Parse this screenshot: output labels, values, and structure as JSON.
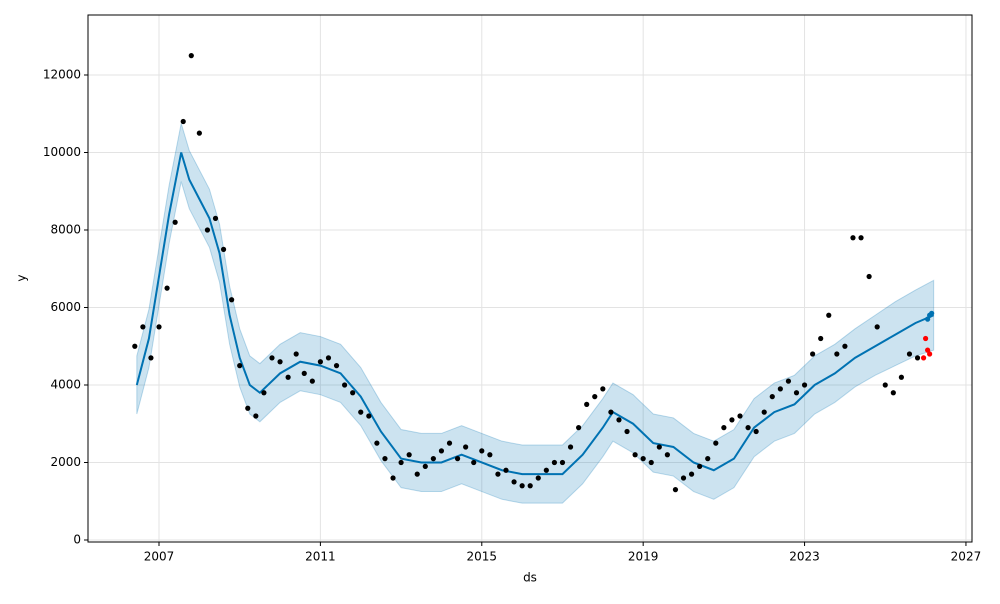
{
  "chart_data": {
    "type": "forecast",
    "x_label": "ds",
    "y_label": "y",
    "xlim": [
      2005.24,
      2027.15
    ],
    "ylim": [
      -52,
      13548
    ],
    "xticks": [
      2007,
      2011,
      2015,
      2019,
      2023,
      2027
    ],
    "yticks": [
      0,
      2000,
      4000,
      6000,
      8000,
      10000,
      12000
    ],
    "grid": true,
    "series": [
      {
        "kind": "band",
        "color": "#0072B2",
        "x": [
          2006.45,
          2006.75,
          2007.0,
          2007.25,
          2007.55,
          2007.75,
          2008.0,
          2008.25,
          2008.5,
          2008.75,
          2009.0,
          2009.25,
          2009.5,
          2010.0,
          2010.5,
          2011.0,
          2011.5,
          2012.0,
          2012.5,
          2013.0,
          2013.5,
          2014.0,
          2014.5,
          2015.0,
          2015.5,
          2016.0,
          2016.5,
          2017.0,
          2017.5,
          2018.0,
          2018.25,
          2018.75,
          2019.25,
          2019.75,
          2020.25,
          2020.75,
          2021.25,
          2021.75,
          2022.25,
          2022.75,
          2023.25,
          2023.75,
          2024.25,
          2024.75,
          2025.25,
          2025.75,
          2026.2
        ],
        "lower": [
          3250,
          4450,
          6050,
          7650,
          9250,
          8550,
          8050,
          7550,
          6650,
          5050,
          3950,
          3250,
          3050,
          3550,
          3850,
          3750,
          3550,
          2950,
          2050,
          1350,
          1250,
          1250,
          1450,
          1250,
          1050,
          950,
          950,
          950,
          1450,
          2150,
          2550,
          2250,
          1750,
          1650,
          1250,
          1050,
          1350,
          2150,
          2550,
          2750,
          3250,
          3550,
          3950,
          4250,
          4500,
          4750,
          4900
        ],
        "upper": [
          4750,
          5950,
          7550,
          9150,
          10750,
          10050,
          9550,
          9050,
          8150,
          6550,
          5450,
          4750,
          4550,
          5050,
          5350,
          5250,
          5050,
          4450,
          3550,
          2850,
          2750,
          2750,
          2950,
          2750,
          2550,
          2450,
          2450,
          2450,
          2950,
          3650,
          4050,
          3750,
          3250,
          3150,
          2750,
          2550,
          2850,
          3650,
          4050,
          4250,
          4750,
          5050,
          5450,
          5800,
          6150,
          6450,
          6700
        ]
      },
      {
        "kind": "line",
        "color": "#0072B2",
        "x": [
          2006.45,
          2006.75,
          2007.0,
          2007.25,
          2007.55,
          2007.75,
          2008.0,
          2008.25,
          2008.5,
          2008.75,
          2009.0,
          2009.25,
          2009.5,
          2010.0,
          2010.5,
          2011.0,
          2011.5,
          2012.0,
          2012.5,
          2013.0,
          2013.5,
          2014.0,
          2014.5,
          2015.0,
          2015.5,
          2016.0,
          2016.5,
          2017.0,
          2017.5,
          2018.0,
          2018.25,
          2018.75,
          2019.25,
          2019.75,
          2020.25,
          2020.75,
          2021.25,
          2021.75,
          2022.25,
          2022.75,
          2023.25,
          2023.75,
          2024.25,
          2024.75,
          2025.25,
          2025.75,
          2026.2
        ],
        "values": [
          4000,
          5200,
          6800,
          8400,
          10000,
          9300,
          8800,
          8300,
          7400,
          5800,
          4700,
          4000,
          3800,
          4300,
          4600,
          4500,
          4300,
          3700,
          2800,
          2100,
          2000,
          2000,
          2200,
          2000,
          1800,
          1700,
          1700,
          1700,
          2200,
          2900,
          3300,
          3000,
          2500,
          2400,
          2000,
          1800,
          2100,
          2900,
          3300,
          3500,
          4000,
          4300,
          4700,
          5000,
          5300,
          5600,
          5800
        ]
      },
      {
        "kind": "scatter",
        "color": "#000000",
        "x": [
          2006.4,
          2006.6,
          2006.8,
          2007.0,
          2007.2,
          2007.4,
          2007.6,
          2007.8,
          2008.0,
          2008.2,
          2008.4,
          2008.6,
          2008.8,
          2009.0,
          2009.2,
          2009.4,
          2009.6,
          2009.8,
          2010.0,
          2010.2,
          2010.4,
          2010.6,
          2010.8,
          2011.0,
          2011.2,
          2011.4,
          2011.6,
          2011.8,
          2012.0,
          2012.2,
          2012.4,
          2012.6,
          2012.8,
          2013.0,
          2013.2,
          2013.4,
          2013.6,
          2013.8,
          2014.0,
          2014.2,
          2014.4,
          2014.6,
          2014.8,
          2015.0,
          2015.2,
          2015.4,
          2015.6,
          2015.8,
          2016.0,
          2016.2,
          2016.4,
          2016.6,
          2016.8,
          2017.0,
          2017.2,
          2017.4,
          2017.6,
          2017.8,
          2018.0,
          2018.2,
          2018.4,
          2018.6,
          2018.8,
          2019.0,
          2019.2,
          2019.4,
          2019.6,
          2019.8,
          2020.0,
          2020.2,
          2020.4,
          2020.6,
          2020.8,
          2021.0,
          2021.2,
          2021.4,
          2021.6,
          2021.8,
          2022.0,
          2022.2,
          2022.4,
          2022.6,
          2022.8,
          2023.0,
          2023.2,
          2023.4,
          2023.6,
          2023.8,
          2024.0,
          2024.2,
          2024.4,
          2024.6,
          2024.8,
          2025.0,
          2025.2,
          2025.4,
          2025.6,
          2025.8
        ],
        "values": [
          5000,
          5500,
          4700,
          5500,
          6500,
          8200,
          10800,
          12500,
          10500,
          8000,
          8300,
          7500,
          6200,
          4500,
          3400,
          3200,
          3800,
          4700,
          4600,
          4200,
          4800,
          4300,
          4100,
          4600,
          4700,
          4500,
          4000,
          3800,
          3300,
          3200,
          2500,
          2100,
          1600,
          2000,
          2200,
          1700,
          1900,
          2100,
          2300,
          2500,
          2100,
          2400,
          2000,
          2300,
          2200,
          1700,
          1800,
          1500,
          1400,
          1400,
          1600,
          1800,
          2000,
          2000,
          2400,
          2900,
          3500,
          3700,
          3900,
          3300,
          3100,
          2800,
          2200,
          2100,
          2000,
          2400,
          2200,
          1300,
          1600,
          1700,
          1900,
          2100,
          2500,
          2900,
          3100,
          3200,
          2900,
          2800,
          3300,
          3700,
          3900,
          4100,
          3800,
          4000,
          4800,
          5200,
          5800,
          4800,
          5000,
          7800,
          7800,
          6800,
          5500,
          4000,
          3800,
          4200,
          4800,
          4700
        ]
      },
      {
        "kind": "scatter",
        "color": "#ff0000",
        "x": [
          2025.95,
          2026.0,
          2026.05,
          2026.1
        ],
        "values": [
          4700,
          5200,
          4900,
          4800
        ]
      },
      {
        "kind": "scatter",
        "color": "#0072B2",
        "x": [
          2026.05,
          2026.1,
          2026.15
        ],
        "values": [
          5700,
          5800,
          5850
        ]
      }
    ]
  }
}
